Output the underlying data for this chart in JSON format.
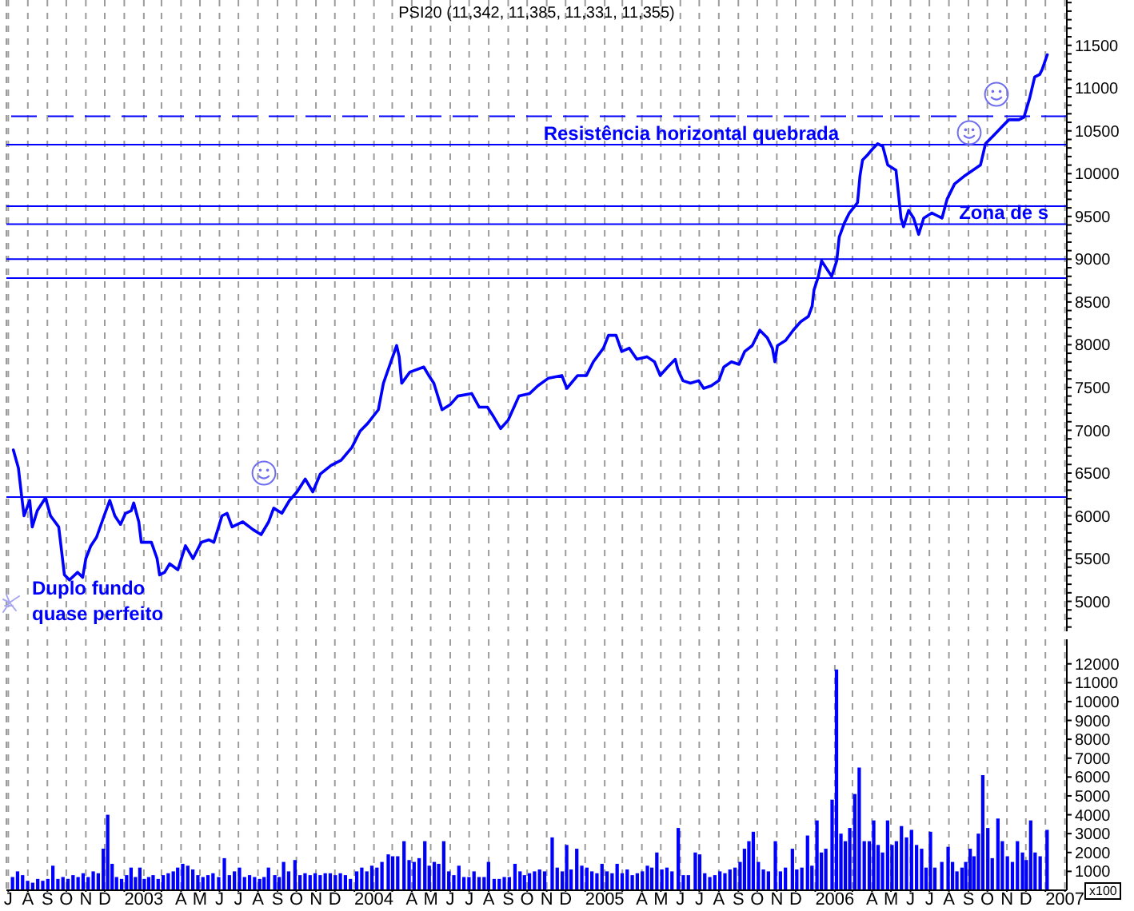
{
  "chart_data": [
    {
      "type": "line",
      "title": "PSI20 (11,342, 11,385, 11,331, 11,355)",
      "color": "#0000ff",
      "grid": "x",
      "tick_labels": "y",
      "xlim": [
        "2002-06-28",
        "2007-02-04"
      ],
      "xticks": [
        {
          "value": "2002-07-01",
          "label": null
        },
        {
          "value": "2002-08-01",
          "label": null
        },
        {
          "value": "2002-09-01",
          "label": null
        },
        {
          "value": "2002-10-01",
          "label": null
        },
        {
          "value": "2002-11-01",
          "label": null
        },
        {
          "value": "2002-12-01",
          "label": null
        },
        {
          "value": "2003-01-01",
          "label": null
        },
        {
          "value": "2003-02-01",
          "label": null
        },
        {
          "value": "2003-03-01",
          "label": null
        },
        {
          "value": "2003-04-01",
          "label": null
        },
        {
          "value": "2003-05-01",
          "label": null
        },
        {
          "value": "2003-06-01",
          "label": null
        },
        {
          "value": "2003-07-01",
          "label": null
        },
        {
          "value": "2003-08-01",
          "label": null
        },
        {
          "value": "2003-09-01",
          "label": null
        },
        {
          "value": "2003-10-01",
          "label": null
        },
        {
          "value": "2003-11-01",
          "label": null
        },
        {
          "value": "2003-12-01",
          "label": null
        },
        {
          "value": "2004-01-01",
          "label": null
        },
        {
          "value": "2004-02-01",
          "label": null
        },
        {
          "value": "2004-03-01",
          "label": null
        },
        {
          "value": "2004-04-01",
          "label": null
        },
        {
          "value": "2004-05-01",
          "label": null
        },
        {
          "value": "2004-06-01",
          "label": null
        },
        {
          "value": "2004-07-01",
          "label": null
        },
        {
          "value": "2004-08-01",
          "label": null
        },
        {
          "value": "2004-09-01",
          "label": null
        },
        {
          "value": "2004-10-01",
          "label": null
        },
        {
          "value": "2004-11-01",
          "label": null
        },
        {
          "value": "2004-12-01",
          "label": null
        },
        {
          "value": "2005-01-01",
          "label": null
        },
        {
          "value": "2005-02-01",
          "label": null
        },
        {
          "value": "2005-03-01",
          "label": null
        },
        {
          "value": "2005-04-01",
          "label": null
        },
        {
          "value": "2005-05-01",
          "label": null
        },
        {
          "value": "2005-06-01",
          "label": null
        },
        {
          "value": "2005-07-01",
          "label": null
        },
        {
          "value": "2005-08-01",
          "label": null
        },
        {
          "value": "2005-09-01",
          "label": null
        },
        {
          "value": "2005-10-01",
          "label": null
        },
        {
          "value": "2005-11-01",
          "label": null
        },
        {
          "value": "2005-12-01",
          "label": null
        },
        {
          "value": "2006-01-01",
          "label": null
        },
        {
          "value": "2006-02-01",
          "label": null
        },
        {
          "value": "2006-03-01",
          "label": null
        },
        {
          "value": "2006-04-01",
          "label": null
        },
        {
          "value": "2006-05-01",
          "label": null
        },
        {
          "value": "2006-06-01",
          "label": null
        },
        {
          "value": "2006-07-01",
          "label": null
        },
        {
          "value": "2006-08-01",
          "label": null
        },
        {
          "value": "2006-09-01",
          "label": null
        },
        {
          "value": "2006-10-01",
          "label": null
        },
        {
          "value": "2006-11-01",
          "label": null
        },
        {
          "value": "2006-12-01",
          "label": null
        },
        {
          "value": "2007-01-01",
          "label": null
        },
        {
          "value": "2007-02-01",
          "label": null
        }
      ],
      "ylim": [
        4650,
        12030
      ],
      "yticks": [
        {
          "value": 4700,
          "label": null
        },
        {
          "value": 4800,
          "label": null
        },
        {
          "value": 4900,
          "label": null
        },
        5000,
        {
          "value": 5100,
          "label": null
        },
        {
          "value": 5200,
          "label": null
        },
        {
          "value": 5300,
          "label": null
        },
        {
          "value": 5400,
          "label": null
        },
        5500,
        {
          "value": 5600,
          "label": null
        },
        {
          "value": 5700,
          "label": null
        },
        {
          "value": 5800,
          "label": null
        },
        {
          "value": 5900,
          "label": null
        },
        6000,
        {
          "value": 6100,
          "label": null
        },
        {
          "value": 6200,
          "label": null
        },
        {
          "value": 6300,
          "label": null
        },
        {
          "value": 6400,
          "label": null
        },
        6500,
        {
          "value": 6600,
          "label": null
        },
        {
          "value": 6700,
          "label": null
        },
        {
          "value": 6800,
          "label": null
        },
        {
          "value": 6900,
          "label": null
        },
        7000,
        {
          "value": 7100,
          "label": null
        },
        {
          "value": 7200,
          "label": null
        },
        {
          "value": 7300,
          "label": null
        },
        {
          "value": 7400,
          "label": null
        },
        7500,
        {
          "value": 7600,
          "label": null
        },
        {
          "value": 7700,
          "label": null
        },
        {
          "value": 7800,
          "label": null
        },
        {
          "value": 7900,
          "label": null
        },
        8000,
        {
          "value": 8100,
          "label": null
        },
        {
          "value": 8200,
          "label": null
        },
        {
          "value": 8300,
          "label": null
        },
        {
          "value": 8400,
          "label": null
        },
        8500,
        {
          "value": 8600,
          "label": null
        },
        {
          "value": 8700,
          "label": null
        },
        {
          "value": 8800,
          "label": null
        },
        {
          "value": 8900,
          "label": null
        },
        9000,
        {
          "value": 9100,
          "label": null
        },
        {
          "value": 9200,
          "label": null
        },
        {
          "value": 9300,
          "label": null
        },
        {
          "value": 9400,
          "label": null
        },
        9500,
        {
          "value": 9600,
          "label": null
        },
        {
          "value": 9700,
          "label": null
        },
        {
          "value": 9800,
          "label": null
        },
        {
          "value": 9900,
          "label": null
        },
        10000,
        {
          "value": 10100,
          "label": null
        },
        {
          "value": 10200,
          "label": null
        },
        {
          "value": 10300,
          "label": null
        },
        {
          "value": 10400,
          "label": null
        },
        10500,
        {
          "value": 10600,
          "label": null
        },
        {
          "value": 10700,
          "label": null
        },
        {
          "value": 10800,
          "label": null
        },
        {
          "value": 10900,
          "label": null
        },
        11000,
        {
          "value": 11100,
          "label": null
        },
        {
          "value": 11200,
          "label": null
        },
        {
          "value": 11300,
          "label": null
        },
        {
          "value": 11400,
          "label": null
        },
        11500,
        {
          "value": 11600,
          "label": null
        },
        {
          "value": 11700,
          "label": null
        },
        {
          "value": 11800,
          "label": null
        },
        {
          "value": 11900,
          "label": null
        },
        {
          "value": 12000,
          "label": null
        }
      ],
      "ref_lines": [
        {
          "axis": "y",
          "value": 10670,
          "color": "#0000ff",
          "line_style": "dashed"
        },
        {
          "axis": "y",
          "value": 10340,
          "color": "#0000ff"
        },
        {
          "axis": "y",
          "value": 9620,
          "color": "#0000ff"
        },
        {
          "axis": "y",
          "value": 9410,
          "color": "#0000ff"
        },
        {
          "axis": "y",
          "value": 9000,
          "color": "#0000ff"
        },
        {
          "axis": "y",
          "value": 8780,
          "color": "#0000ff"
        },
        {
          "axis": "y",
          "value": 6220,
          "color": "#0000ff"
        }
      ],
      "annotations": [
        {
          "text": "Resistência horizontal quebrada",
          "x": "2004-10-27",
          "y": 10340
        },
        {
          "text": "Zona de s",
          "x": "2006-08-17",
          "y": 9410
        },
        "Duplo fundo quase perfeito"
      ],
      "x": [
        "2002-07-09",
        "2002-07-17",
        "2002-07-22",
        "2002-07-26",
        "2002-08-04",
        "2002-08-08",
        "2002-08-16",
        "2002-08-29",
        "2002-09-06",
        "2002-09-19",
        "2002-09-24",
        "2002-09-28",
        "2002-10-06",
        "2002-10-19",
        "2002-10-27",
        "2002-11-01",
        "2002-11-09",
        "2002-11-18",
        "2002-11-30",
        "2002-12-09",
        "2002-12-17",
        "2002-12-26",
        "2003-01-03",
        "2003-01-12",
        "2003-01-16",
        "2003-01-24",
        "2003-01-28",
        "2003-02-13",
        "2003-02-22",
        "2003-02-26",
        "2003-03-06",
        "2003-03-14",
        "2003-03-27",
        "2003-04-08",
        "2003-04-20",
        "2003-05-03",
        "2003-05-15",
        "2003-05-23",
        "2003-06-05",
        "2003-06-13",
        "2003-06-21",
        "2003-07-08",
        "2003-07-24",
        "2003-08-06",
        "2003-08-18",
        "2003-08-26",
        "2003-09-08",
        "2003-09-20",
        "2003-10-02",
        "2003-10-15",
        "2003-10-27",
        "2003-11-08",
        "2003-11-25",
        "2003-12-11",
        "2003-12-28",
        "2004-01-10",
        "2004-01-22",
        "2004-02-08",
        "2004-02-16",
        "2004-02-25",
        "2004-03-08",
        "2004-03-12",
        "2004-03-16",
        "2004-03-29",
        "2004-04-20",
        "2004-04-28",
        "2004-05-06",
        "2004-05-19",
        "2004-06-01",
        "2004-06-13",
        "2004-07-05",
        "2004-07-17",
        "2004-07-30",
        "2004-08-07",
        "2004-08-20",
        "2004-09-01",
        "2004-09-18",
        "2004-10-05",
        "2004-10-18",
        "2004-11-04",
        "2004-11-25",
        "2004-12-03",
        "2004-12-20",
        "2005-01-03",
        "2005-01-14",
        "2005-01-30",
        "2005-02-07",
        "2005-02-19",
        "2005-02-28",
        "2005-03-12",
        "2005-03-24",
        "2005-04-09",
        "2005-04-21",
        "2005-04-30",
        "2005-05-12",
        "2005-05-24",
        "2005-05-28",
        "2005-06-05",
        "2005-06-17",
        "2005-06-30",
        "2005-07-08",
        "2005-07-20",
        "2005-08-01",
        "2005-08-09",
        "2005-08-21",
        "2005-09-02",
        "2005-09-11",
        "2005-09-23",
        "2005-10-05",
        "2005-10-17",
        "2005-10-25",
        "2005-10-29",
        "2005-11-02",
        "2005-11-15",
        "2005-11-27",
        "2005-12-09",
        "2005-12-21",
        "2005-12-27",
        "2005-12-30",
        "2006-01-06",
        "2006-01-11",
        "2006-01-19",
        "2006-01-27",
        "2006-02-04",
        "2006-02-08",
        "2006-02-16",
        "2006-02-24",
        "2006-03-09",
        "2006-03-13",
        "2006-03-17",
        "2006-03-25",
        "2006-04-02",
        "2006-04-10",
        "2006-04-18",
        "2006-04-26",
        "2006-05-09",
        "2006-05-13",
        "2006-05-17",
        "2006-05-21",
        "2006-05-29",
        "2006-06-06",
        "2006-06-14",
        "2006-06-22",
        "2006-07-05",
        "2006-07-13",
        "2006-07-21",
        "2006-07-29",
        "2006-08-10",
        "2006-08-27",
        "2006-09-08",
        "2006-09-20",
        "2006-09-28",
        "2006-10-10",
        "2006-10-23",
        "2006-11-04",
        "2006-11-20",
        "2006-11-28",
        "2006-12-07",
        "2006-12-15",
        "2006-12-23",
        "2006-12-27",
        "2007-01-04"
      ],
      "values": [
        6770,
        6560,
        6240,
        6000,
        6180,
        5870,
        6060,
        6210,
        6000,
        5870,
        5560,
        5310,
        5250,
        5340,
        5280,
        5500,
        5650,
        5750,
        6000,
        6180,
        6000,
        5900,
        6030,
        6060,
        6150,
        5930,
        5690,
        5690,
        5500,
        5310,
        5340,
        5440,
        5370,
        5650,
        5500,
        5690,
        5720,
        5690,
        6000,
        6030,
        5870,
        5930,
        5840,
        5780,
        5930,
        6090,
        6030,
        6180,
        6280,
        6430,
        6280,
        6490,
        6590,
        6650,
        6800,
        6990,
        7080,
        7240,
        7550,
        7740,
        7990,
        7860,
        7550,
        7680,
        7740,
        7640,
        7550,
        7240,
        7300,
        7400,
        7430,
        7270,
        7270,
        7180,
        7020,
        7120,
        7400,
        7430,
        7520,
        7610,
        7640,
        7490,
        7640,
        7640,
        7800,
        7960,
        8110,
        8110,
        7920,
        7960,
        7830,
        7860,
        7800,
        7640,
        7740,
        7830,
        7710,
        7580,
        7550,
        7580,
        7490,
        7520,
        7580,
        7740,
        7800,
        7770,
        7920,
        7990,
        8170,
        8080,
        7960,
        7800,
        7990,
        8050,
        8170,
        8270,
        8330,
        8450,
        8640,
        8800,
        8980,
        8890,
        8800,
        8980,
        9260,
        9420,
        9540,
        9660,
        9980,
        10160,
        10220,
        10290,
        10350,
        10320,
        10100,
        10040,
        9760,
        9480,
        9380,
        9570,
        9480,
        9290,
        9480,
        9540,
        9510,
        9480,
        9700,
        9880,
        9980,
        10040,
        10100,
        10350,
        10440,
        10540,
        10630,
        10630,
        10660,
        10880,
        11130,
        11160,
        11220,
        11390
      ]
    },
    {
      "type": "bar",
      "color": "#0000ff",
      "grid": "x",
      "ylabel": "x100",
      "xlim": [
        "2002-06-28",
        "2007-02-04"
      ],
      "xticks": [
        {
          "value": "2002-07-01",
          "label": "J"
        },
        {
          "value": "2002-08-01",
          "label": "A"
        },
        {
          "value": "2002-09-01",
          "label": "S"
        },
        {
          "value": "2002-10-01",
          "label": "O"
        },
        {
          "value": "2002-11-01",
          "label": "N"
        },
        {
          "value": "2002-12-01",
          "label": "D"
        },
        {
          "value": "2003-01-01",
          "label": null
        },
        {
          "value": "2003-02-01",
          "label": "2003"
        },
        {
          "value": "2003-03-01",
          "label": null
        },
        {
          "value": "2003-04-01",
          "label": "A"
        },
        {
          "value": "2003-05-01",
          "label": "M"
        },
        {
          "value": "2003-06-01",
          "label": "J"
        },
        {
          "value": "2003-07-01",
          "label": "J"
        },
        {
          "value": "2003-08-01",
          "label": "A"
        },
        {
          "value": "2003-09-01",
          "label": "S"
        },
        {
          "value": "2003-10-01",
          "label": "O"
        },
        {
          "value": "2003-11-01",
          "label": "N"
        },
        {
          "value": "2003-12-01",
          "label": "D"
        },
        {
          "value": "2004-01-01",
          "label": null
        },
        {
          "value": "2004-02-01",
          "label": "2004"
        },
        {
          "value": "2004-03-01",
          "label": null
        },
        {
          "value": "2004-04-01",
          "label": "A"
        },
        {
          "value": "2004-05-01",
          "label": "M"
        },
        {
          "value": "2004-06-01",
          "label": "J"
        },
        {
          "value": "2004-07-01",
          "label": "J"
        },
        {
          "value": "2004-08-01",
          "label": "A"
        },
        {
          "value": "2004-09-01",
          "label": "S"
        },
        {
          "value": "2004-10-01",
          "label": "O"
        },
        {
          "value": "2004-11-01",
          "label": "N"
        },
        {
          "value": "2004-12-01",
          "label": "D"
        },
        {
          "value": "2005-01-01",
          "label": null
        },
        {
          "value": "2005-02-01",
          "label": "2005"
        },
        {
          "value": "2005-03-01",
          "label": null
        },
        {
          "value": "2005-04-01",
          "label": "A"
        },
        {
          "value": "2005-05-01",
          "label": "M"
        },
        {
          "value": "2005-06-01",
          "label": "J"
        },
        {
          "value": "2005-07-01",
          "label": "J"
        },
        {
          "value": "2005-08-01",
          "label": "A"
        },
        {
          "value": "2005-09-01",
          "label": "S"
        },
        {
          "value": "2005-10-01",
          "label": "O"
        },
        {
          "value": "2005-11-01",
          "label": "N"
        },
        {
          "value": "2005-12-01",
          "label": "D"
        },
        {
          "value": "2006-01-01",
          "label": null
        },
        {
          "value": "2006-02-01",
          "label": "2006"
        },
        {
          "value": "2006-03-01",
          "label": null
        },
        {
          "value": "2006-04-01",
          "label": "A"
        },
        {
          "value": "2006-05-01",
          "label": "M"
        },
        {
          "value": "2006-06-01",
          "label": "J"
        },
        {
          "value": "2006-07-01",
          "label": "J"
        },
        {
          "value": "2006-08-01",
          "label": "A"
        },
        {
          "value": "2006-09-01",
          "label": "S"
        },
        {
          "value": "2006-10-01",
          "label": "O"
        },
        {
          "value": "2006-11-01",
          "label": "N"
        },
        {
          "value": "2006-12-01",
          "label": "D"
        },
        {
          "value": "2007-01-01",
          "label": null
        },
        {
          "value": "2007-02-01",
          "label": "2007"
        }
      ],
      "ylim": [
        0,
        13300
      ],
      "yticks": [
        1000,
        2000,
        3000,
        4000,
        5000,
        6000,
        7000,
        8000,
        9000,
        10000,
        11000,
        12000
      ],
      "x": [
        "2002-07-08",
        "2002-07-16",
        "2002-07-24",
        "2002-08-01",
        "2002-08-09",
        "2002-08-17",
        "2002-08-25",
        "2002-09-02",
        "2002-09-10",
        "2002-09-18",
        "2002-09-26",
        "2002-10-04",
        "2002-10-12",
        "2002-10-20",
        "2002-10-28",
        "2002-11-05",
        "2002-11-13",
        "2002-11-21",
        "2002-11-29",
        "2002-12-06",
        "2002-12-13",
        "2002-12-20",
        "2002-12-28",
        "2003-01-05",
        "2003-01-12",
        "2003-01-19",
        "2003-01-26",
        "2003-02-02",
        "2003-02-09",
        "2003-02-16",
        "2003-02-24",
        "2003-03-04",
        "2003-03-12",
        "2003-03-20",
        "2003-03-27",
        "2003-04-04",
        "2003-04-12",
        "2003-04-20",
        "2003-04-28",
        "2003-05-06",
        "2003-05-14",
        "2003-05-22",
        "2003-05-31",
        "2003-06-09",
        "2003-06-17",
        "2003-06-25",
        "2003-07-03",
        "2003-07-11",
        "2003-07-19",
        "2003-07-27",
        "2003-08-04",
        "2003-08-11",
        "2003-08-18",
        "2003-08-28",
        "2003-09-04",
        "2003-09-11",
        "2003-09-19",
        "2003-09-29",
        "2003-10-07",
        "2003-10-15",
        "2003-10-23",
        "2003-10-31",
        "2003-11-08",
        "2003-11-16",
        "2003-11-24",
        "2003-12-02",
        "2003-12-10",
        "2003-12-18",
        "2003-12-26",
        "2004-01-05",
        "2004-01-13",
        "2004-01-21",
        "2004-01-29",
        "2004-02-06",
        "2004-02-14",
        "2004-02-24",
        "2004-03-02",
        "2004-03-10",
        "2004-03-20",
        "2004-03-28",
        "2004-04-05",
        "2004-04-13",
        "2004-04-22",
        "2004-04-29",
        "2004-05-07",
        "2004-05-14",
        "2004-05-22",
        "2004-05-30",
        "2004-06-07",
        "2004-06-15",
        "2004-06-23",
        "2004-07-01",
        "2004-07-09",
        "2004-07-17",
        "2004-07-25",
        "2004-08-01",
        "2004-08-10",
        "2004-08-18",
        "2004-08-26",
        "2004-09-03",
        "2004-09-12",
        "2004-09-20",
        "2004-09-27",
        "2004-10-05",
        "2004-10-13",
        "2004-10-21",
        "2004-10-29",
        "2004-11-10",
        "2004-11-18",
        "2004-11-26",
        "2004-12-03",
        "2004-12-10",
        "2004-12-19",
        "2004-12-27",
        "2005-01-04",
        "2005-01-12",
        "2005-01-20",
        "2005-01-28",
        "2005-02-05",
        "2005-02-13",
        "2005-02-21",
        "2005-03-01",
        "2005-03-09",
        "2005-03-17",
        "2005-03-25",
        "2005-04-02",
        "2005-04-10",
        "2005-04-17",
        "2005-04-25",
        "2005-05-03",
        "2005-05-11",
        "2005-05-19",
        "2005-05-29",
        "2005-06-06",
        "2005-06-14",
        "2005-06-25",
        "2005-07-02",
        "2005-07-10",
        "2005-07-18",
        "2005-07-26",
        "2005-08-03",
        "2005-08-11",
        "2005-08-19",
        "2005-08-27",
        "2005-09-04",
        "2005-09-11",
        "2005-09-18",
        "2005-09-25",
        "2005-10-03",
        "2005-10-11",
        "2005-10-19",
        "2005-10-30",
        "2005-11-07",
        "2005-11-15",
        "2005-11-26",
        "2005-12-03",
        "2005-12-11",
        "2005-12-20",
        "2005-12-27",
        "2006-01-04",
        "2006-01-11",
        "2006-01-18",
        "2006-01-28",
        "2006-02-04",
        "2006-02-11",
        "2006-02-18",
        "2006-02-25",
        "2006-03-05",
        "2006-03-12",
        "2006-03-20",
        "2006-03-28",
        "2006-04-04",
        "2006-04-11",
        "2006-04-18",
        "2006-04-26",
        "2006-05-03",
        "2006-05-10",
        "2006-05-18",
        "2006-05-26",
        "2006-06-03",
        "2006-06-11",
        "2006-06-19",
        "2006-06-26",
        "2006-07-03",
        "2006-07-10",
        "2006-07-21",
        "2006-07-31",
        "2006-08-07",
        "2006-08-14",
        "2006-08-22",
        "2006-08-28",
        "2006-09-04",
        "2006-09-10",
        "2006-09-17",
        "2006-09-24",
        "2006-10-02",
        "2006-10-09",
        "2006-10-18",
        "2006-10-25",
        "2006-11-02",
        "2006-11-10",
        "2006-11-18",
        "2006-11-26",
        "2006-12-02",
        "2006-12-09",
        "2006-12-16",
        "2006-12-24",
        "2007-01-04"
      ],
      "values": [
        700,
        1000,
        800,
        500,
        400,
        600,
        500,
        600,
        1300,
        600,
        700,
        600,
        800,
        700,
        900,
        700,
        1000,
        900,
        2200,
        4000,
        1400,
        700,
        600,
        800,
        1200,
        700,
        1200,
        600,
        700,
        800,
        600,
        800,
        900,
        1000,
        1200,
        1400,
        1300,
        1100,
        800,
        700,
        800,
        900,
        700,
        1700,
        800,
        1000,
        1200,
        700,
        800,
        700,
        600,
        700,
        1200,
        800,
        700,
        1500,
        1000,
        1600,
        800,
        900,
        800,
        900,
        800,
        900,
        900,
        800,
        900,
        800,
        600,
        1000,
        1200,
        1000,
        1300,
        1200,
        1500,
        1900,
        1800,
        1800,
        2600,
        1600,
        1500,
        1700,
        2600,
        1300,
        1500,
        1400,
        2600,
        1000,
        800,
        1300,
        700,
        700,
        1000,
        700,
        700,
        1500,
        600,
        600,
        700,
        700,
        1400,
        1000,
        800,
        900,
        1000,
        1100,
        1000,
        2800,
        1200,
        1000,
        2400,
        1100,
        2200,
        1300,
        1200,
        1000,
        900,
        1400,
        1000,
        900,
        1400,
        900,
        1100,
        800,
        900,
        1000,
        1300,
        1200,
        2000,
        1100,
        1200,
        1000,
        3300,
        800,
        800,
        2000,
        1900,
        900,
        700,
        800,
        1000,
        900,
        1100,
        1200,
        1500,
        2200,
        2600,
        3100,
        1500,
        1100,
        1000,
        2600,
        1000,
        1200,
        2200,
        1100,
        1200,
        2900,
        1300,
        3700,
        2000,
        2200,
        4800,
        11700,
        3000,
        2600,
        3300,
        5100,
        6500,
        2600,
        2600,
        3700,
        2400,
        2000,
        3700,
        2400,
        2600,
        3400,
        2800,
        3200,
        2400,
        2200,
        1200,
        3100,
        1200,
        1500,
        2300,
        1500,
        1000,
        1200,
        1500,
        2200,
        1800,
        3000,
        6100,
        3300,
        1700,
        3800,
        2600,
        1800,
        1500,
        2600,
        2000,
        1600,
        3700,
        2000,
        1800,
        3200
      ]
    }
  ]
}
